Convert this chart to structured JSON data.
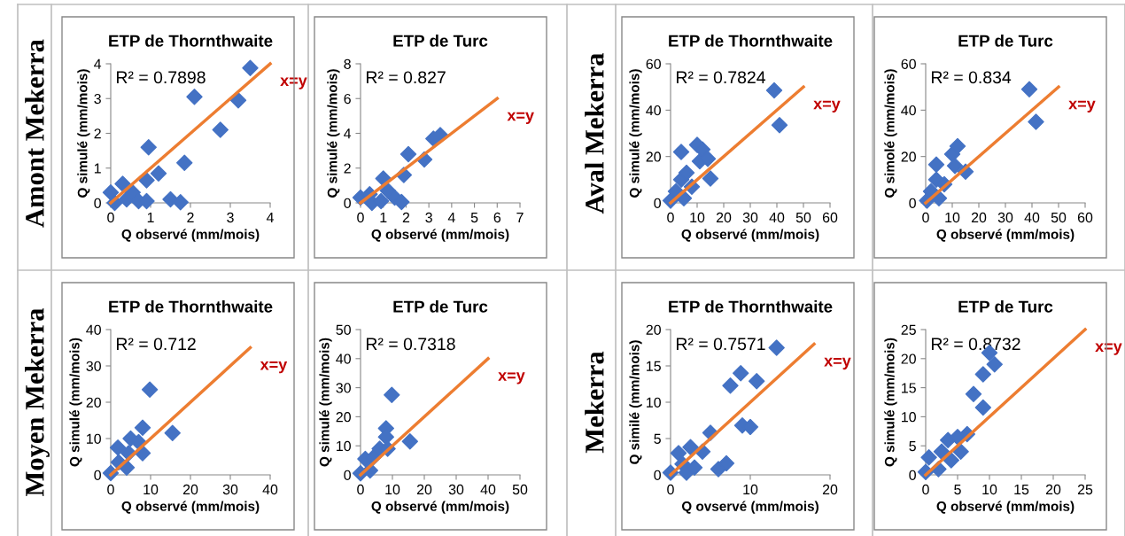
{
  "chart_data": [
    {
      "type": "scatter",
      "title": "ETP de Thornthwaite",
      "xlabel": "Q observé (mm/mois)",
      "ylabel": "Q simulé (mm/mois)",
      "xlim": [
        0,
        4
      ],
      "ylim": [
        0,
        4
      ],
      "xticks": [
        0,
        1,
        2,
        3,
        4
      ],
      "yticks": [
        0,
        1,
        2,
        3,
        4
      ],
      "marker": "diamond",
      "grid": false,
      "legend": false,
      "annotations": [
        "R² = 0.7898",
        "Amont Mekerra"
      ],
      "series": [
        {
          "color": "#4472c4",
          "x": [
            0,
            0.1,
            0.3,
            0.4,
            0.55,
            0.7,
            0.9,
            0.9,
            0.95,
            1.2,
            1.5,
            1.75,
            1.85,
            2.1,
            2.75,
            3.2,
            3.5
          ],
          "values": [
            0.3,
            0,
            0.55,
            0.1,
            0.3,
            0.05,
            0.05,
            0.65,
            1.6,
            0.85,
            0.1,
            0.02,
            1.15,
            3.05,
            2.1,
            2.95,
            3.88
          ]
        },
        {
          "type": "line",
          "name": "x=y",
          "color": "#ed7d31",
          "marker": "none",
          "x": [
            0,
            4
          ],
          "values": [
            0,
            4
          ]
        }
      ]
    },
    {
      "type": "scatter",
      "title": "ETP de Turc",
      "xlabel": "Q observé (mm/mois)",
      "ylabel": "Q simulé (mm/mois)",
      "xlim": [
        0,
        7
      ],
      "ylim": [
        0,
        8
      ],
      "xticks": [
        0,
        1,
        2,
        3,
        4,
        5,
        6,
        7
      ],
      "yticks": [
        0,
        2,
        4,
        6,
        8
      ],
      "marker": "diamond",
      "grid": false,
      "legend": false,
      "annotations": [
        "R² = 0.827"
      ],
      "series": [
        {
          "color": "#4472c4",
          "x": [
            0,
            0.4,
            0.5,
            0.9,
            1.0,
            1.2,
            1.5,
            1.8,
            1.9,
            2.1,
            2.8,
            3.2,
            3.5
          ],
          "values": [
            0.3,
            0.5,
            0,
            0.1,
            1.4,
            0.7,
            0.3,
            0.05,
            1.6,
            2.8,
            2.5,
            3.7,
            3.9
          ]
        },
        {
          "type": "line",
          "name": "x=y",
          "color": "#ed7d31",
          "marker": "none",
          "x": [
            0,
            6
          ],
          "values": [
            0,
            6
          ]
        }
      ]
    },
    {
      "type": "scatter",
      "title": "ETP de Thornthwaite",
      "xlabel": "Q observé (mm/mois)",
      "ylabel": "Q simulé (mm/mois)",
      "xlim": [
        0,
        60
      ],
      "ylim": [
        0,
        60
      ],
      "xticks": [
        0,
        10,
        20,
        30,
        40,
        50,
        60
      ],
      "yticks": [
        0,
        20,
        40,
        60
      ],
      "marker": "diamond",
      "grid": false,
      "legend": false,
      "annotations": [
        "R² = 0.7824",
        "Aval Mekerra"
      ],
      "series": [
        {
          "color": "#4472c4",
          "x": [
            0,
            2,
            4,
            4,
            5,
            6,
            8,
            10,
            11,
            12,
            14,
            15,
            39,
            41
          ],
          "values": [
            1,
            5,
            10,
            22,
            2,
            13,
            7,
            25,
            18,
            23,
            19,
            10.5,
            48.5,
            33.5
          ]
        },
        {
          "type": "line",
          "name": "x=y",
          "color": "#ed7d31",
          "marker": "none",
          "x": [
            0,
            50
          ],
          "values": [
            0,
            50
          ]
        }
      ]
    },
    {
      "type": "scatter",
      "title": "ETP de Turc",
      "xlabel": "Q observé (mm/mois)",
      "ylabel": "Q simolé (mm/mois)",
      "xlim": [
        0,
        60
      ],
      "ylim": [
        0,
        60
      ],
      "xticks": [
        0,
        10,
        20,
        30,
        40,
        50,
        60
      ],
      "yticks": [
        0,
        20,
        40,
        60
      ],
      "marker": "diamond",
      "grid": false,
      "legend": false,
      "annotations": [
        "R² = 0.834"
      ],
      "series": [
        {
          "color": "#4472c4",
          "x": [
            0.5,
            2,
            4,
            4,
            5,
            7,
            10,
            11,
            12,
            15,
            39,
            41.5
          ],
          "values": [
            1,
            5,
            10,
            16.5,
            2,
            8,
            21,
            16,
            24.5,
            13.5,
            49,
            35
          ]
        },
        {
          "type": "line",
          "name": "x=y",
          "color": "#ed7d31",
          "marker": "none",
          "x": [
            0,
            50
          ],
          "values": [
            0,
            50
          ]
        }
      ]
    },
    {
      "type": "scatter",
      "title": "ETP de Thornthwaite",
      "xlabel": "Q observé (mm/mois)",
      "ylabel": "Q simulé (mm/mois)",
      "xlim": [
        0,
        40
      ],
      "ylim": [
        0,
        40
      ],
      "xticks": [
        0,
        10,
        20,
        30,
        40
      ],
      "yticks": [
        0,
        10,
        20,
        30,
        40
      ],
      "marker": "diamond",
      "grid": false,
      "legend": false,
      "annotations": [
        "R² = 0.712",
        "Moyen Mekerra"
      ],
      "series": [
        {
          "color": "#4472c4",
          "x": [
            0,
            2,
            1.8,
            4,
            5,
            4.5,
            7,
            8,
            8,
            9.8,
            15.5
          ],
          "values": [
            0.5,
            3.5,
            7.5,
            2,
            10,
            6,
            9,
            13,
            6,
            23.5,
            11.5
          ]
        },
        {
          "type": "line",
          "name": "x=y",
          "color": "#ed7d31",
          "marker": "none",
          "x": [
            0,
            35
          ],
          "values": [
            0,
            35
          ]
        }
      ]
    },
    {
      "type": "scatter",
      "title": "ETP de Turc",
      "xlabel": "Q observé (mm/mois)",
      "ylabel": "Q simulé (mm/mois)",
      "xlim": [
        0,
        50
      ],
      "ylim": [
        0,
        50
      ],
      "xticks": [
        0,
        10,
        20,
        30,
        40,
        50
      ],
      "yticks": [
        0,
        10,
        20,
        30,
        40,
        50
      ],
      "marker": "diamond",
      "grid": false,
      "legend": false,
      "annotations": [
        "R² = 0.7318"
      ],
      "series": [
        {
          "color": "#4472c4",
          "x": [
            0,
            1.5,
            3,
            4,
            6,
            8,
            8,
            8.5,
            9.8,
            15.5
          ],
          "values": [
            0.5,
            5.5,
            1.5,
            6,
            9,
            16,
            13,
            9,
            27.5,
            11.5
          ]
        },
        {
          "type": "line",
          "name": "x=y",
          "color": "#ed7d31",
          "marker": "none",
          "x": [
            0,
            40
          ],
          "values": [
            0,
            40
          ]
        }
      ]
    },
    {
      "type": "scatter",
      "title": "ETP de Thornthwaite",
      "xlabel": "Q ovservé (mm/mois)",
      "ylabel": "Q similé (mm/mois)",
      "xlim": [
        0,
        20
      ],
      "ylim": [
        0,
        20
      ],
      "xticks": [
        0,
        10,
        20
      ],
      "yticks": [
        0,
        5,
        10,
        15,
        20
      ],
      "marker": "diamond",
      "grid": false,
      "legend": false,
      "annotations": [
        "R² = 0.7571",
        "Mekerra"
      ],
      "series": [
        {
          "color": "#4472c4",
          "x": [
            0,
            1,
            1.5,
            2,
            2.5,
            3,
            4,
            5,
            6,
            7,
            7.5,
            8.8,
            9,
            10,
            10.8,
            13.3
          ],
          "values": [
            0.3,
            3,
            1.5,
            0.3,
            3.8,
            1,
            3.2,
            5.8,
            0.8,
            1.6,
            12.3,
            14,
            6.8,
            6.6,
            12.9,
            17.5
          ]
        },
        {
          "type": "line",
          "name": "x=y",
          "color": "#ed7d31",
          "marker": "none",
          "x": [
            0,
            18
          ],
          "values": [
            0,
            18
          ]
        }
      ]
    },
    {
      "type": "scatter",
      "title": "ETP de Turc",
      "xlabel": "Q observé (mm/mois)",
      "ylabel": "Q simulé (mm/mois)",
      "xlim": [
        0,
        25
      ],
      "ylim": [
        0,
        25
      ],
      "xticks": [
        0,
        5,
        10,
        15,
        20,
        25
      ],
      "yticks": [
        0,
        5,
        10,
        15,
        20,
        25
      ],
      "marker": "diamond",
      "grid": false,
      "legend": false,
      "annotations": [
        "R² = 0.8732"
      ],
      "series": [
        {
          "color": "#4472c4",
          "x": [
            0,
            0.5,
            2,
            2.5,
            3.5,
            4,
            5,
            5.5,
            6.5,
            7.5,
            9,
            9,
            10,
            10.8
          ],
          "values": [
            0.5,
            3,
            1,
            4,
            6,
            2.5,
            6.5,
            4,
            7,
            13.9,
            17.3,
            11.6,
            21,
            19
          ]
        },
        {
          "type": "line",
          "name": "x=y",
          "color": "#ed7d31",
          "marker": "none",
          "x": [
            0,
            25
          ],
          "values": [
            0,
            25
          ]
        }
      ]
    }
  ]
}
